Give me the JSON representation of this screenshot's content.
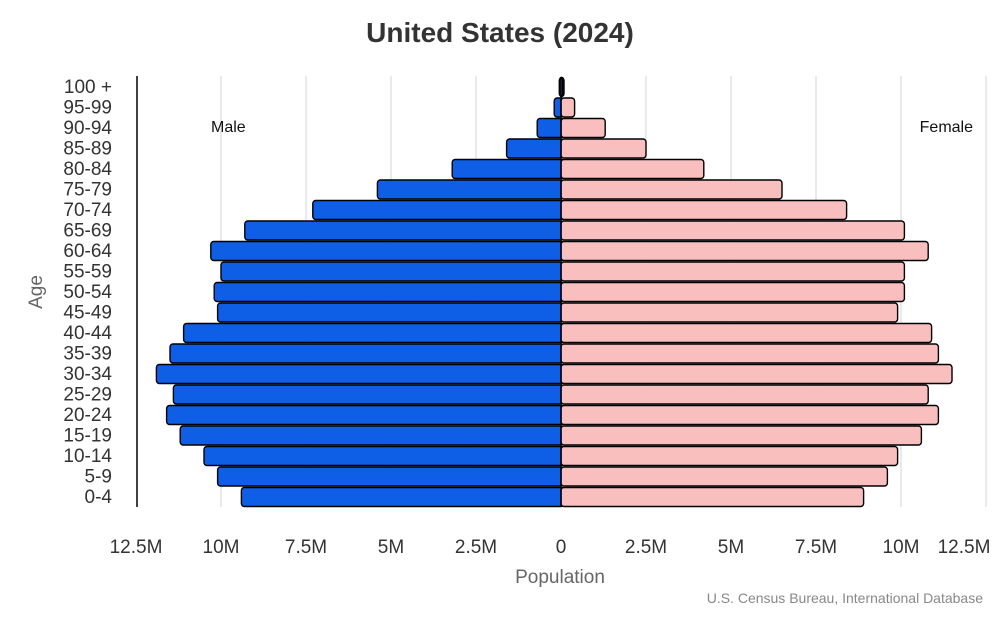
{
  "chart_data": {
    "type": "bar",
    "orientation": "horizontal",
    "title": "United States (2024)",
    "xlabel": "Population",
    "ylabel": "Age",
    "source": "U.S. Census Bureau, International Database",
    "categories": [
      "0-4",
      "5-9",
      "10-14",
      "15-19",
      "20-24",
      "25-29",
      "30-34",
      "35-39",
      "40-44",
      "45-49",
      "50-54",
      "55-59",
      "60-64",
      "65-69",
      "70-74",
      "75-79",
      "80-84",
      "85-89",
      "90-94",
      "95-99",
      "100 +"
    ],
    "series": [
      {
        "name": "Male",
        "color": "#0f5fe6",
        "values": [
          9.4,
          10.1,
          10.5,
          11.2,
          11.6,
          11.4,
          11.9,
          11.5,
          11.1,
          10.1,
          10.2,
          10.0,
          10.3,
          9.3,
          7.3,
          5.4,
          3.2,
          1.6,
          0.7,
          0.2,
          0.05
        ]
      },
      {
        "name": "Female",
        "color": "#f9bfbf",
        "values": [
          8.9,
          9.6,
          9.9,
          10.6,
          11.1,
          10.8,
          11.5,
          11.1,
          10.9,
          9.9,
          10.1,
          10.1,
          10.8,
          10.1,
          8.4,
          6.5,
          4.2,
          2.5,
          1.3,
          0.4,
          0.05
        ]
      }
    ],
    "value_unit": "millions",
    "xlim": [
      -12.5,
      12.5
    ],
    "xticks": [
      -12.5,
      -10,
      -7.5,
      -5,
      -2.5,
      0,
      2.5,
      5,
      7.5,
      10,
      12.5
    ],
    "xtick_labels": [
      "12.5M",
      "10M",
      "7.5M",
      "5M",
      "2.5M",
      "0",
      "2.5M",
      "5M",
      "7.5M",
      "10M",
      "12.5M"
    ],
    "grid": "vertical",
    "legend": "inline labels top-left (Male) and top-right (Female)"
  }
}
